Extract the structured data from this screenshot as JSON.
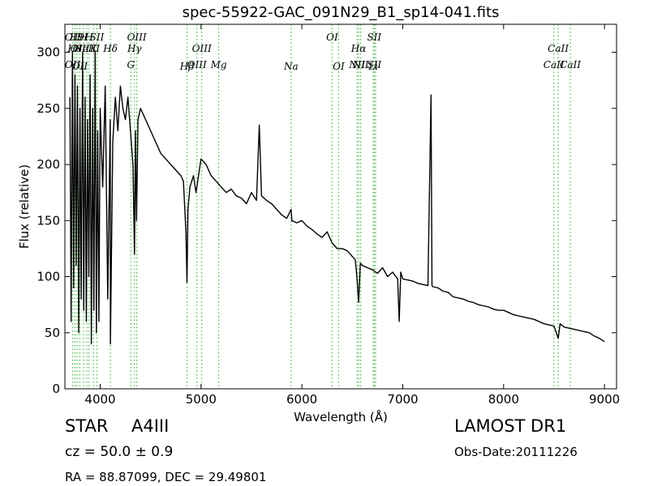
{
  "chart_data": {
    "type": "line",
    "title": "spec-55922-GAC_091N29_B1_sp14-041.fits",
    "xlabel": "Wavelength (Å)",
    "ylabel": "Flux (relative)",
    "xlim": [
      3650,
      9120
    ],
    "ylim": [
      0,
      325
    ],
    "xticks": [
      4000,
      5000,
      6000,
      7000,
      8000,
      9000
    ],
    "yticks": [
      0,
      50,
      100,
      150,
      200,
      250,
      300
    ],
    "grid": false,
    "series": [
      {
        "color": "#000000",
        "x": [
          3700,
          3712,
          3725,
          3737,
          3750,
          3762,
          3775,
          3787,
          3800,
          3812,
          3825,
          3837,
          3850,
          3862,
          3875,
          3887,
          3900,
          3912,
          3925,
          3937,
          3950,
          3962,
          3975,
          3987,
          4000,
          4025,
          4050,
          4075,
          4100,
          4101,
          4125,
          4150,
          4175,
          4200,
          4225,
          4250,
          4275,
          4300,
          4325,
          4340,
          4350,
          4360,
          4375,
          4400,
          4450,
          4500,
          4550,
          4600,
          4650,
          4700,
          4750,
          4800,
          4825,
          4850,
          4861,
          4870,
          4890,
          4925,
          4950,
          5000,
          5050,
          5100,
          5150,
          5200,
          5250,
          5300,
          5350,
          5400,
          5450,
          5500,
          5550,
          5577,
          5600,
          5650,
          5700,
          5750,
          5800,
          5850,
          5893,
          5900,
          5950,
          6000,
          6050,
          6100,
          6150,
          6200,
          6250,
          6300,
          6350,
          6400,
          6450,
          6500,
          6530,
          6545,
          6563,
          6580,
          6600,
          6650,
          6700,
          6750,
          6800,
          6850,
          6900,
          6950,
          6965,
          6980,
          7000,
          7050,
          7100,
          7150,
          7200,
          7250,
          7280,
          7290,
          7300,
          7350,
          7400,
          7450,
          7500,
          7550,
          7600,
          7650,
          7700,
          7750,
          7800,
          7850,
          7900,
          7950,
          8000,
          8050,
          8100,
          8150,
          8200,
          8250,
          8300,
          8350,
          8400,
          8450,
          8500,
          8542,
          8560,
          8600,
          8650,
          8700,
          8750,
          8800,
          8850,
          8900,
          8950,
          9000
        ],
        "y": [
          260,
          60,
          300,
          90,
          280,
          110,
          270,
          50,
          250,
          80,
          300,
          70,
          260,
          60,
          240,
          100,
          280,
          40,
          250,
          70,
          300,
          50,
          230,
          60,
          250,
          180,
          270,
          80,
          240,
          40,
          220,
          260,
          230,
          270,
          250,
          240,
          260,
          230,
          200,
          120,
          230,
          150,
          240,
          250,
          240,
          230,
          220,
          210,
          205,
          200,
          195,
          190,
          185,
          140,
          95,
          160,
          180,
          190,
          175,
          205,
          200,
          190,
          185,
          180,
          175,
          178,
          172,
          170,
          165,
          175,
          168,
          235,
          172,
          168,
          165,
          160,
          155,
          152,
          160,
          150,
          148,
          150,
          145,
          142,
          138,
          135,
          140,
          130,
          125,
          125,
          123,
          118,
          115,
          100,
          77,
          112,
          110,
          108,
          106,
          103,
          108,
          100,
          104,
          98,
          60,
          104,
          98,
          97,
          96,
          94,
          93,
          92,
          262,
          92,
          91,
          90,
          87,
          86,
          82,
          81,
          80,
          78,
          77,
          75,
          74,
          73,
          71,
          70,
          70,
          68,
          66,
          65,
          64,
          63,
          62,
          60,
          58,
          57,
          56,
          45,
          58,
          55,
          54,
          53,
          52,
          51,
          50,
          47,
          45,
          42
        ]
      }
    ],
    "line_labels": [
      {
        "x": 3727,
        "top": "OII",
        "bottom": "OII"
      },
      {
        "x": 3750,
        "top": "H8",
        "bottom": ""
      },
      {
        "x": 3770,
        "top": "H9",
        "bottom": ""
      },
      {
        "x": 3798,
        "top": "OIII",
        "bottom": "OII"
      },
      {
        "x": 3835,
        "top": "H",
        "bottom": ""
      },
      {
        "x": 3869,
        "top": "NeIII",
        "bottom": ""
      },
      {
        "x": 3889,
        "top": "H",
        "bottom": ""
      },
      {
        "x": 3934,
        "top": "K",
        "bottom": ""
      },
      {
        "x": 3968,
        "top": "SII",
        "bottom": ""
      },
      {
        "x": 4101,
        "top": "Hδ",
        "bottom": ""
      },
      {
        "x": 4304,
        "top": "",
        "bottom": "G"
      },
      {
        "x": 4340,
        "top": "Hγ",
        "bottom": ""
      },
      {
        "x": 4363,
        "top": "OIII",
        "bottom": ""
      },
      {
        "x": 4861,
        "top": "",
        "bottom": "Hβ"
      },
      {
        "x": 4959,
        "top": "",
        "bottom": "OIII"
      },
      {
        "x": 5007,
        "top": "OIII",
        "bottom": ""
      },
      {
        "x": 5175,
        "top": "",
        "bottom": "Mg"
      },
      {
        "x": 5893,
        "top": "",
        "bottom": "Na"
      },
      {
        "x": 6300,
        "top": "OI",
        "bottom": ""
      },
      {
        "x": 6364,
        "top": "",
        "bottom": "OI"
      },
      {
        "x": 6548,
        "top": "",
        "bottom": "NII"
      },
      {
        "x": 6563,
        "top": "Hα",
        "bottom": ""
      },
      {
        "x": 6583,
        "top": "",
        "bottom": "NII"
      },
      {
        "x": 6708,
        "top": "",
        "bottom": "Li"
      },
      {
        "x": 6717,
        "top": "SII",
        "bottom": "SII"
      },
      {
        "x": 6731,
        "top": "",
        "bottom": ""
      },
      {
        "x": 8498,
        "top": "",
        "bottom": "CaII"
      },
      {
        "x": 8542,
        "top": "CaII",
        "bottom": ""
      },
      {
        "x": 8662,
        "top": "",
        "bottom": "CaII"
      }
    ]
  },
  "info": {
    "object_class": "STAR",
    "subclass": "A4III",
    "survey": "LAMOST DR1",
    "cz": "cz = 50.0  ± 0.9",
    "obs_date": "Obs-Date:20111226",
    "coords": "RA = 88.87099, DEC = 29.49801"
  },
  "colors": {
    "spectrum": "#000000",
    "lines": "#44bb44"
  }
}
